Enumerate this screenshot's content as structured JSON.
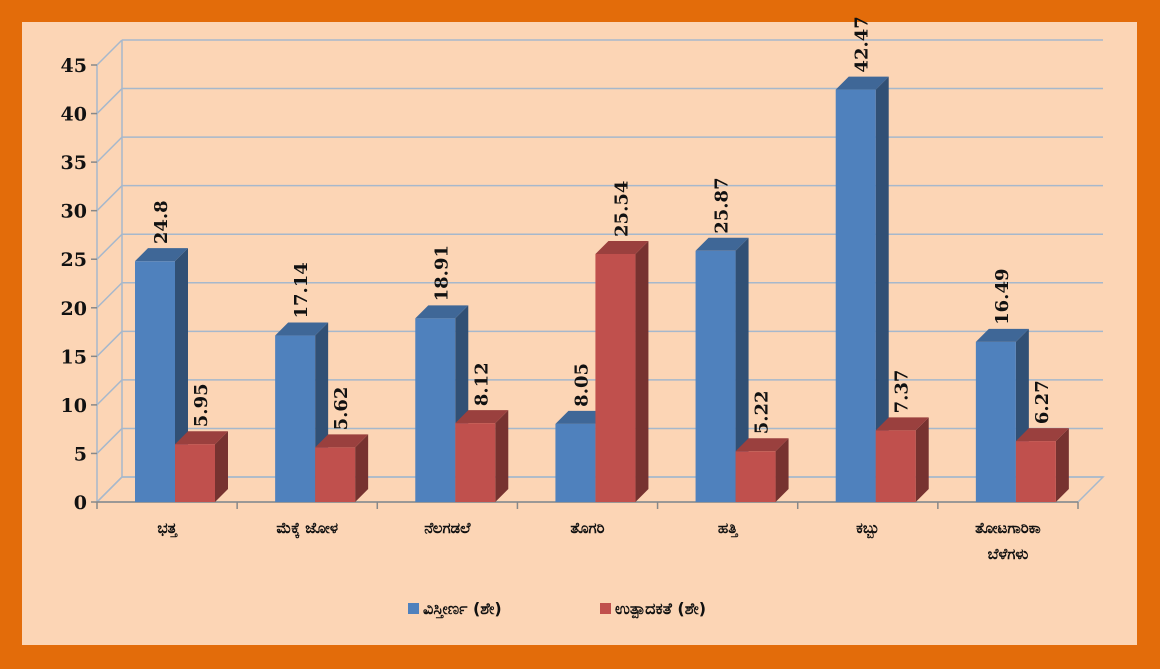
{
  "chart_data": {
    "type": "bar",
    "title": "",
    "xlabel": "",
    "ylabel": "",
    "ylim": [
      0,
      45
    ],
    "yticks": [
      0,
      5,
      10,
      15,
      20,
      25,
      30,
      35,
      40,
      45
    ],
    "grid": true,
    "legend_position": "bottom",
    "categories": [
      [
        "ಭತ್ತ"
      ],
      [
        "ಮೆಕ್ಕೆ ಜೋಳ"
      ],
      [
        "ನೆಲಗಡಲೆ"
      ],
      [
        "ತೊಗರಿ"
      ],
      [
        "ಹತ್ತಿ"
      ],
      [
        "ಕಬ್ಬು"
      ],
      [
        "ತೋಟಗಾರಿಕಾ",
        "ಬೆಳೆಗಳು"
      ]
    ],
    "series": [
      {
        "name": "ವಿಸ್ತೀರ್ಣ (ಶೇ)",
        "color": "#4f81bd",
        "values": [
          24.8,
          17.14,
          18.91,
          8.05,
          25.87,
          42.47,
          16.49
        ],
        "labels": [
          "24.8",
          "17.14",
          "18.91",
          "8.05",
          "25.87",
          "42.47",
          "16.49"
        ]
      },
      {
        "name": "ಉತ್ಪಾದಕತೆ (ಶೇ)",
        "color": "#c0504d",
        "values": [
          5.95,
          5.62,
          8.12,
          25.54,
          5.22,
          7.37,
          6.27
        ],
        "labels": [
          "5.95",
          "5.62",
          "8.12",
          "25.54",
          "5.22",
          "7.37",
          "6.27"
        ]
      }
    ]
  },
  "colors": {
    "page_background": "#e36c0a",
    "plot_background": "#fcd5b5",
    "gridline": "#a6b8cc"
  }
}
